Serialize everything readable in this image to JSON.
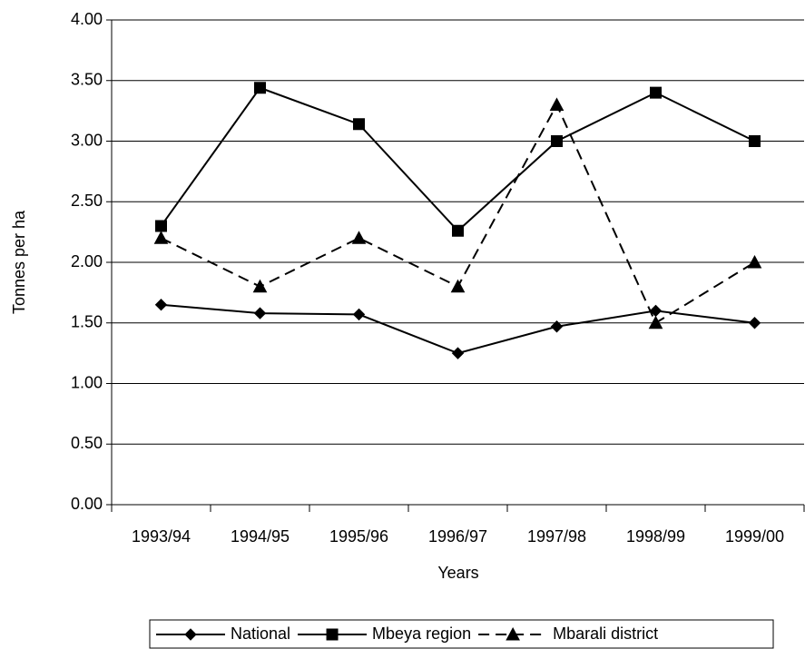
{
  "chart_data": {
    "type": "line",
    "x_label": "Years",
    "y_label": "Tonnes per ha",
    "categories": [
      "1993/94",
      "1994/95",
      "1995/96",
      "1996/97",
      "1997/98",
      "1998/99",
      "1999/00"
    ],
    "series": [
      {
        "name": "National",
        "color": "#000000",
        "marker": "diamond",
        "dashed": false,
        "values": [
          1.65,
          1.58,
          1.57,
          1.25,
          1.47,
          1.6,
          1.5
        ]
      },
      {
        "name": "Mbeya region",
        "color": "#000000",
        "marker": "square",
        "dashed": false,
        "values": [
          2.3,
          3.44,
          3.14,
          2.26,
          3.0,
          3.4,
          3.0
        ]
      },
      {
        "name": "Mbarali district",
        "color": "#000000",
        "marker": "triangle",
        "dashed": true,
        "values": [
          2.2,
          1.8,
          2.2,
          1.8,
          3.3,
          1.5,
          2.0
        ]
      }
    ],
    "ylim": [
      0,
      4
    ],
    "yticks": [
      {
        "value": 0,
        "label": "0.00"
      },
      {
        "value": 0.5,
        "label": "0.50"
      },
      {
        "value": 1,
        "label": "1.00"
      },
      {
        "value": 1.5,
        "label": "1.50"
      },
      {
        "value": 2,
        "label": "2.00"
      },
      {
        "value": 2.5,
        "label": "2.50"
      },
      {
        "value": 3,
        "label": "3.00"
      },
      {
        "value": 3.5,
        "label": "3.50"
      },
      {
        "value": 4,
        "label": "4.00"
      }
    ],
    "grid": true,
    "legend": "bottom"
  }
}
